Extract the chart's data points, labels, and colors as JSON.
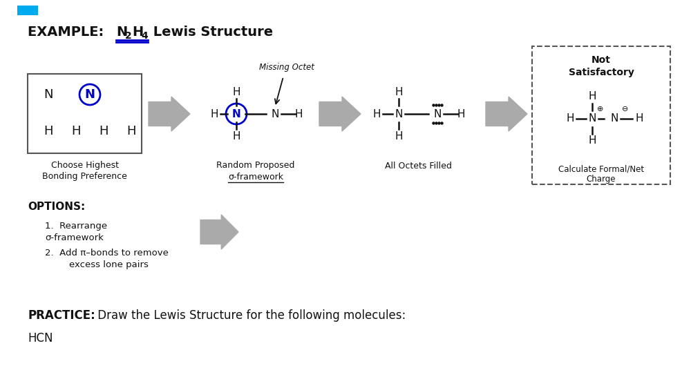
{
  "bg_color": "#ffffff",
  "dark": "#111111",
  "blue": "#0000cc",
  "gray_arrow": "#999999",
  "dgray": "#555555",
  "fig_w": 10.0,
  "fig_h": 5.62,
  "dpi": 100,
  "title": "EXAMPLE: N₂H₄ Lewis Structure",
  "options_label": "OPTIONS:",
  "opt1": "1.  Rearrange",
  "opt1b": "σ-framework",
  "opt2": "2.  Add π–bonds to remove",
  "opt2b": "excess lone pairs",
  "practice_bold": "PRACTICE:",
  "practice_rest": " Draw the Lewis Structure for the following molecules:",
  "hcn": "HCN",
  "missing_octet": "Missing Octet",
  "random_proposed": "Random Proposed",
  "sigma_framework": "σ-framework",
  "all_octets": "All Octets Filled",
  "not_satisfactory_1": "Not",
  "not_satisfactory_2": "Satisfactory",
  "calc_charge_1": "Calculate Formal/Net",
  "calc_charge_2": "Charge",
  "choose_highest_1": "Choose Highest",
  "choose_highest_2": "Bonding Preference"
}
